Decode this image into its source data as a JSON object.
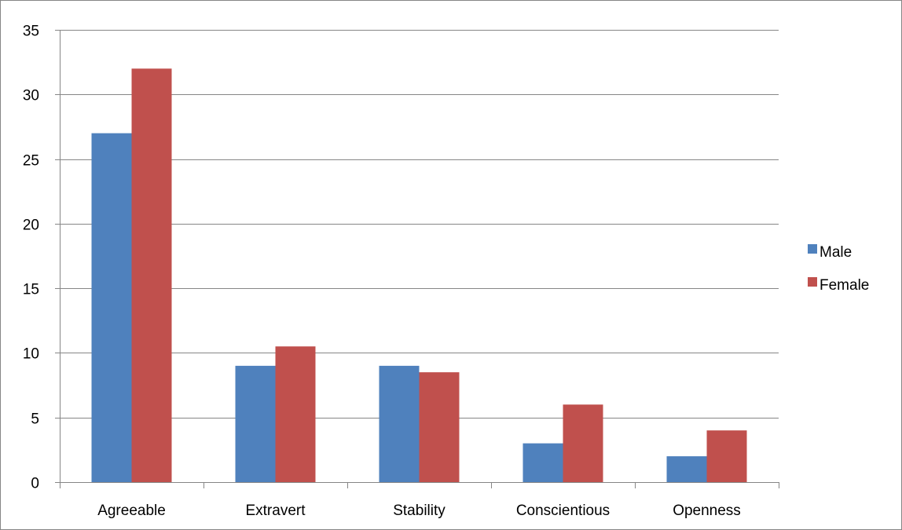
{
  "chart_data": {
    "type": "bar",
    "title": "",
    "xlabel": "",
    "ylabel": "",
    "categories": [
      "Agreeable",
      "Extravert",
      "Stability",
      "Conscientious",
      "Openness"
    ],
    "series": [
      {
        "name": "Male",
        "color": "#4f81bd",
        "values": [
          27,
          9,
          9,
          3,
          2
        ]
      },
      {
        "name": "Female",
        "color": "#c0504d",
        "values": [
          32,
          10.5,
          8.5,
          6,
          4
        ]
      }
    ],
    "ylim": [
      0,
      35
    ],
    "yticks": [
      0,
      5,
      10,
      15,
      20,
      25,
      30,
      35
    ],
    "grid": true,
    "legend_position": "right"
  }
}
